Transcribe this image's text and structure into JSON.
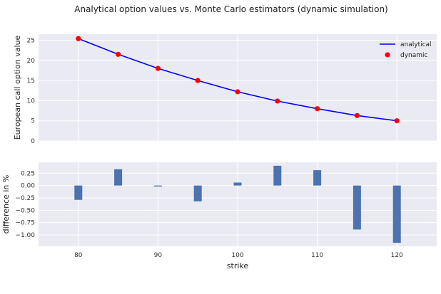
{
  "chart_data": {
    "title": "Analytical option values vs. Monte Carlo estimators (dynamic simulation)",
    "style": {
      "background": "#eaeaf2",
      "grid": "#ffffff",
      "line_color": "#0000ff",
      "marker_color": "#ff0000",
      "bar_color": "#4c72b0"
    },
    "panels": [
      {
        "type": "line",
        "ylabel": "European call option value",
        "xlim": [
          75,
          125
        ],
        "ylim": [
          0,
          26.5
        ],
        "yticks": [
          0,
          5,
          10,
          15,
          20,
          25
        ],
        "grid": true,
        "legend_placement": "upper-right",
        "series": [
          {
            "name": "analytical",
            "kind": "line",
            "x": [
              80,
              85,
              90,
              95,
              100,
              105,
              110,
              115,
              120
            ],
            "y": [
              25.4,
              21.5,
              18.0,
              15.0,
              12.2,
              9.9,
              8.0,
              6.3,
              5.0
            ]
          },
          {
            "name": "dynamic",
            "kind": "marker",
            "x": [
              80,
              85,
              90,
              95,
              100,
              105,
              110,
              115,
              120
            ],
            "y": [
              25.4,
              21.5,
              18.0,
              15.0,
              12.2,
              9.9,
              8.0,
              6.3,
              5.0
            ]
          }
        ]
      },
      {
        "type": "bar",
        "xlabel": "strike",
        "ylabel": "difference in %",
        "xlim": [
          75,
          125
        ],
        "ylim": [
          -1.23,
          0.47
        ],
        "xticks": [
          80,
          90,
          100,
          110,
          120
        ],
        "yticks": [
          0.25,
          0.0,
          -0.25,
          -0.5,
          -0.75,
          -1.0
        ],
        "ytick_labels": [
          "0.25",
          "0.00",
          "−0.25",
          "−0.50",
          "−0.75",
          "−1.00"
        ],
        "grid": true,
        "x": [
          80,
          85,
          90,
          95,
          100,
          105,
          110,
          115,
          120
        ],
        "values": [
          -0.29,
          0.33,
          -0.02,
          -0.32,
          0.06,
          0.4,
          0.31,
          -0.89,
          -1.16
        ]
      }
    ]
  }
}
